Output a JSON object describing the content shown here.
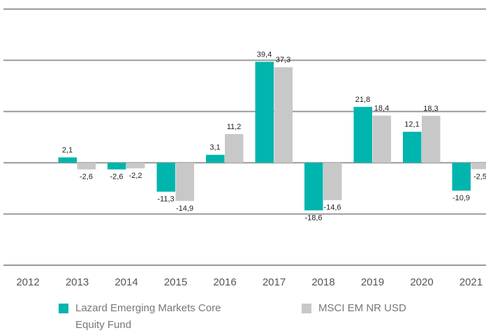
{
  "chart_data": {
    "type": "bar",
    "categories": [
      "2012",
      "2013",
      "2014",
      "2015",
      "2016",
      "2017",
      "2018",
      "2019",
      "2020",
      "2021"
    ],
    "series": [
      {
        "name": "Lazard Emerging Markets Core Equity Fund",
        "color": "#00b5ad",
        "values": [
          null,
          2.1,
          -2.6,
          -11.3,
          3.1,
          39.4,
          -18.6,
          21.8,
          12.1,
          -10.9
        ],
        "value_labels": [
          null,
          "2,1",
          "-2,6",
          "-11,3",
          "3,1",
          "39,4",
          "-18,6",
          "21,8",
          "12,1",
          "-10,9"
        ]
      },
      {
        "name": "MSCI EM NR USD",
        "color": "#c8c8c8",
        "values": [
          null,
          -2.6,
          -2.2,
          -14.9,
          11.2,
          37.3,
          -14.6,
          18.4,
          18.3,
          -2.5
        ],
        "value_labels": [
          null,
          "-2,6",
          "-2,2",
          "-14,9",
          "11,2",
          "37,3",
          "-14,6",
          "18,4",
          "18,3",
          "-2,5"
        ]
      }
    ],
    "ylim": [
      -40,
      60
    ],
    "yticks": [
      -40,
      -20,
      0,
      20,
      40,
      60
    ],
    "grid": true
  }
}
